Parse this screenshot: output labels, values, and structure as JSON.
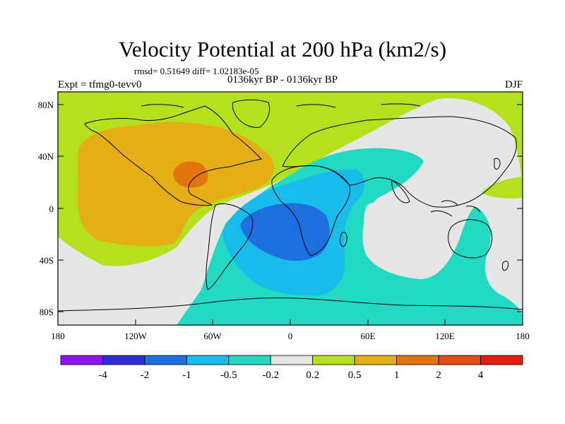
{
  "title": "Velocity Potential at 200 hPa (km2/s)",
  "stats": "rmsd= 0.51649 diff= 1.02183e-05",
  "expt": "Expt = tfmg0-tevv0",
  "subtitle": "0136kyr BP - 0136kyr BP",
  "season": "DJF",
  "y_ticks": [
    "80N",
    "40N",
    "0",
    "40S",
    "80S"
  ],
  "x_ticks": [
    "180",
    "120W",
    "60W",
    "0",
    "60E",
    "120E",
    "180"
  ],
  "colorbar": {
    "labels": [
      "-4",
      "-2",
      "-1",
      "-0.5",
      "-0.2",
      "0.2",
      "0.5",
      "1",
      "2",
      "4"
    ],
    "colors": [
      "#8f14f2",
      "#2e2ed8",
      "#1c6fdc",
      "#18bcea",
      "#22d9c3",
      "#e6e6e6",
      "#b5e01e",
      "#e4ae14",
      "#e4740e",
      "#e44a12",
      "#e81a10"
    ]
  },
  "legend_values": {
    "background_class": "0.2",
    "americas_high": "0.5",
    "caribbean_core": "1",
    "southern_band": "-0.2",
    "atlantic_low": "-0.5",
    "south_atlantic_core": "-1"
  }
}
